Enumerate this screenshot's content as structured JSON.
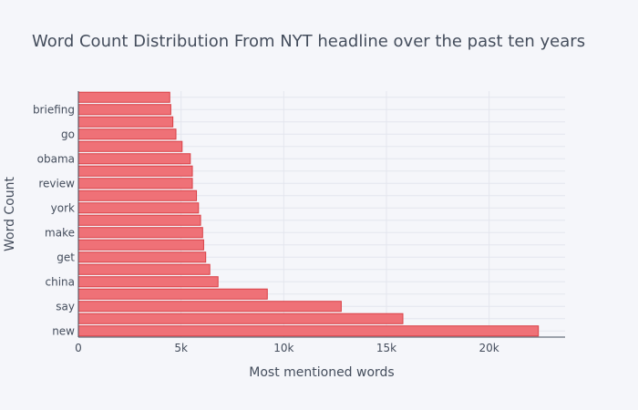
{
  "chart_data": {
    "type": "bar",
    "orientation": "horizontal",
    "title": "Word Count Distribution From NYT headline over the past ten years",
    "xlabel": "Most mentioned words",
    "ylabel": "Word Count",
    "xlim": [
      0,
      23700
    ],
    "x_ticks": [
      0,
      5000,
      10000,
      15000,
      20000
    ],
    "x_tick_labels": [
      "0",
      "5k",
      "10k",
      "15k",
      "20k"
    ],
    "categories": [
      "new",
      "",
      "say",
      "",
      "china",
      "",
      "get",
      "",
      "make",
      "",
      "york",
      "",
      "review",
      "",
      "obama",
      "",
      "go",
      "",
      "briefing",
      ""
    ],
    "values": [
      22400,
      15800,
      12800,
      9200,
      6800,
      6400,
      6200,
      6100,
      6050,
      5950,
      5850,
      5750,
      5550,
      5550,
      5450,
      5050,
      4750,
      4600,
      4500,
      4450
    ],
    "bar_color": "#ef7177",
    "bar_edge_color": "#d94046",
    "grid": true
  }
}
